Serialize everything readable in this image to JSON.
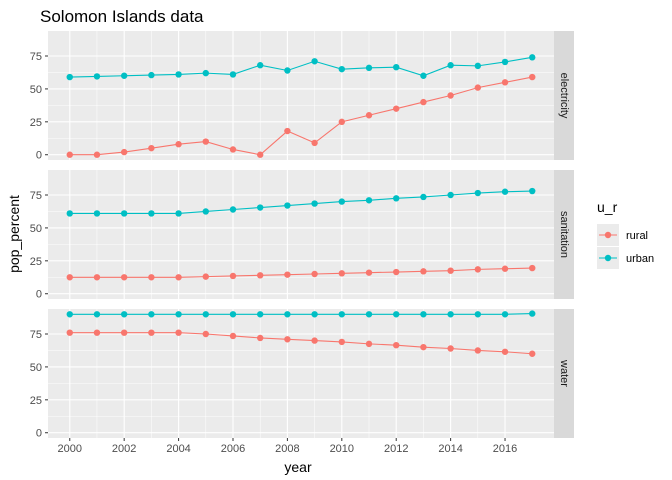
{
  "chart_data": {
    "type": "line",
    "title": "Solomon Islands data",
    "xlabel": "year",
    "ylabel": "pop_percent",
    "x": [
      2000,
      2001,
      2002,
      2003,
      2004,
      2005,
      2006,
      2007,
      2008,
      2009,
      2010,
      2011,
      2012,
      2013,
      2014,
      2015,
      2016,
      2017
    ],
    "xticks": [
      "2000",
      "2002",
      "2004",
      "2006",
      "2008",
      "2010",
      "2012",
      "2014",
      "2016"
    ],
    "yticks": [
      "0",
      "25",
      "50",
      "75"
    ],
    "xlim": [
      1999.2,
      2017.8
    ],
    "ylim": [
      -4,
      94
    ],
    "grid": true,
    "legend": {
      "title": "u_r",
      "position": "right",
      "items": [
        {
          "label": "rural",
          "color": "#F8766D"
        },
        {
          "label": "urban",
          "color": "#00BFC4"
        }
      ]
    },
    "facets": [
      {
        "label": "electricity",
        "series": [
          {
            "name": "rural",
            "color": "#F8766D",
            "values": [
              0,
              0,
              2,
              5,
              8,
              10,
              4,
              0,
              18,
              9,
              25,
              30,
              35,
              40,
              45,
              51,
              55,
              59
            ]
          },
          {
            "name": "urban",
            "color": "#00BFC4",
            "values": [
              59,
              59.5,
              60,
              60.5,
              61,
              62,
              61,
              68,
              64,
              71,
              65,
              66,
              66.5,
              60,
              68,
              67.5,
              70.5,
              74
            ]
          }
        ]
      },
      {
        "label": "sanitation",
        "series": [
          {
            "name": "rural",
            "color": "#F8766D",
            "values": [
              12.5,
              12.5,
              12.5,
              12.5,
              12.5,
              13,
              13.5,
              14,
              14.5,
              15,
              15.5,
              16,
              16.5,
              17,
              17.5,
              18.5,
              19,
              19.5
            ]
          },
          {
            "name": "urban",
            "color": "#00BFC4",
            "values": [
              61,
              61,
              61,
              61,
              61,
              62.5,
              64,
              65.5,
              67,
              68.5,
              70,
              71,
              72.5,
              73.5,
              75,
              76.5,
              77.5,
              78
            ]
          }
        ]
      },
      {
        "label": "water",
        "series": [
          {
            "name": "rural",
            "color": "#F8766D",
            "values": [
              76,
              76,
              76,
              76,
              76,
              75,
              73.5,
              72,
              71,
              70,
              69,
              67.5,
              66.5,
              65,
              64,
              62.5,
              61.5,
              60
            ]
          },
          {
            "name": "urban",
            "color": "#00BFC4",
            "values": [
              90,
              90,
              90,
              90,
              90,
              90,
              90,
              90,
              90,
              90,
              90,
              90,
              90,
              90,
              90,
              90,
              90,
              90.5
            ]
          }
        ]
      }
    ]
  }
}
